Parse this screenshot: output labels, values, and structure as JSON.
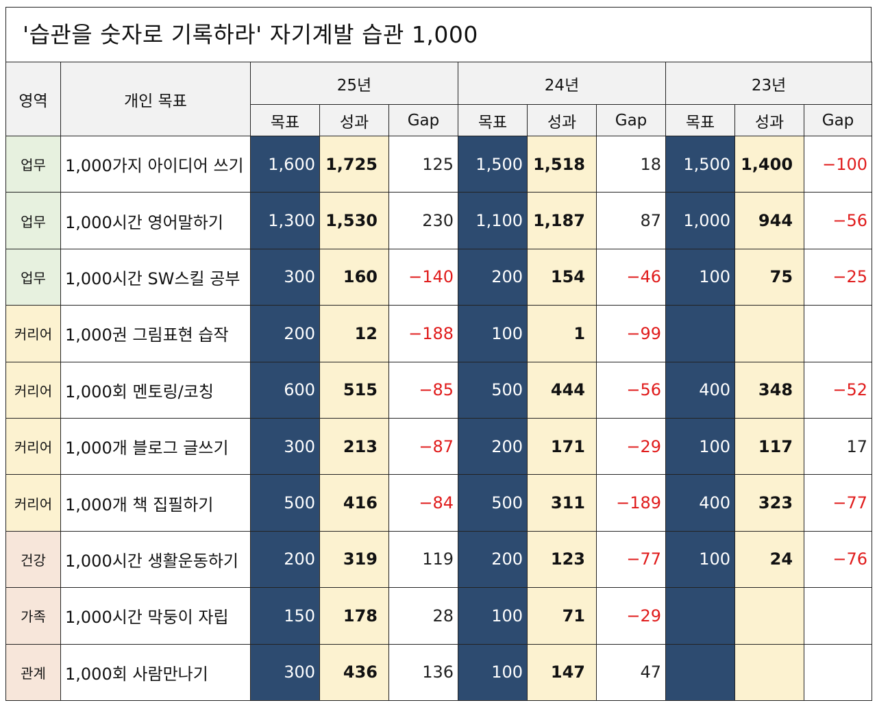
{
  "title": "'습관을 숫자로 기록하라'  자기계발 습관 1,000",
  "headers": {
    "area": "영역",
    "goal": "개인 목표",
    "years": [
      "25년",
      "24년",
      "23년"
    ],
    "sub": [
      "목표",
      "성과",
      "Gap"
    ]
  },
  "rows": [
    {
      "area": "업무",
      "area_type": "work",
      "goal": "1,000가지 아이디어 쓰기",
      "y25": [
        "1,600",
        "1,725",
        "125"
      ],
      "y24": [
        "1,500",
        "1,518",
        "18"
      ],
      "y23": [
        "1,500",
        "1,400",
        "−100"
      ]
    },
    {
      "area": "업무",
      "area_type": "work",
      "goal": "1,000시간 영어말하기",
      "y25": [
        "1,300",
        "1,530",
        "230"
      ],
      "y24": [
        "1,100",
        "1,187",
        "87"
      ],
      "y23": [
        "1,000",
        "944",
        "−56"
      ]
    },
    {
      "area": "업무",
      "area_type": "work",
      "goal": "1,000시간 SW스킬 공부",
      "y25": [
        "300",
        "160",
        "−140"
      ],
      "y24": [
        "200",
        "154",
        "−46"
      ],
      "y23": [
        "100",
        "75",
        "−25"
      ]
    },
    {
      "area": "커리어",
      "area_type": "career",
      "goal": "1,000권 그림표현 습작",
      "y25": [
        "200",
        "12",
        "−188"
      ],
      "y24": [
        "100",
        "1",
        "−99"
      ],
      "y23": [
        "",
        "",
        ""
      ]
    },
    {
      "area": "커리어",
      "area_type": "career",
      "goal": "1,000회 멘토링/코칭",
      "y25": [
        "600",
        "515",
        "−85"
      ],
      "y24": [
        "500",
        "444",
        "−56"
      ],
      "y23": [
        "400",
        "348",
        "−52"
      ]
    },
    {
      "area": "커리어",
      "area_type": "career",
      "goal": "1,000개 블로그 글쓰기",
      "y25": [
        "300",
        "213",
        "−87"
      ],
      "y24": [
        "200",
        "171",
        "−29"
      ],
      "y23": [
        "100",
        "117",
        "17"
      ]
    },
    {
      "area": "커리어",
      "area_type": "career",
      "goal": "1,000개 책 집필하기",
      "y25": [
        "500",
        "416",
        "−84"
      ],
      "y24": [
        "500",
        "311",
        "−189"
      ],
      "y23": [
        "400",
        "323",
        "−77"
      ]
    },
    {
      "area": "건강",
      "area_type": "health",
      "goal": "1,000시간 생활운동하기",
      "y25": [
        "200",
        "319",
        "119"
      ],
      "y24": [
        "200",
        "123",
        "−77"
      ],
      "y23": [
        "100",
        "24",
        "−76"
      ]
    },
    {
      "area": "가족",
      "area_type": "health",
      "goal": "1,000시간 막둥이 자립",
      "y25": [
        "150",
        "178",
        "28"
      ],
      "y24": [
        "100",
        "71",
        "−29"
      ],
      "y23": [
        "",
        "",
        ""
      ]
    },
    {
      "area": "관계",
      "area_type": "health",
      "goal": "1,000회 사람만나기",
      "y25": [
        "300",
        "436",
        "136"
      ],
      "y24": [
        "100",
        "147",
        "47"
      ],
      "y23": [
        "",
        "",
        ""
      ]
    }
  ],
  "colors": {
    "target_bg": "#2d4b70",
    "result_bg": "#fcf2d0",
    "negative_text": "#e01b1b",
    "work_bg": "#e7f1df",
    "career_bg": "#fcf2d0",
    "health_bg": "#f7e6da"
  }
}
